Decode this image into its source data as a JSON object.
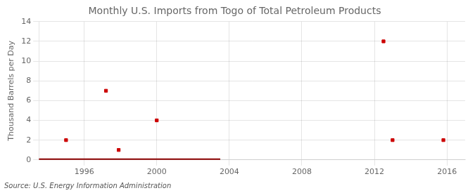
{
  "chart_data": {
    "type": "scatter",
    "title": "Monthly U.S. Imports from Togo of Total Petroleum Products",
    "ylabel": "Thousand Barrels per Day",
    "source": "Source: U.S. Energy Information Administration",
    "xlim": [
      1993.5,
      2017.0
    ],
    "ylim": [
      0,
      14
    ],
    "xticks": [
      1996,
      2000,
      2004,
      2008,
      2012,
      2016
    ],
    "yticks": [
      0,
      2,
      4,
      6,
      8,
      10,
      12,
      14
    ],
    "grid": true,
    "series": [
      {
        "type": "line",
        "color": "#8b0000",
        "line_style": "solid",
        "x": [
          1993.5,
          2003.5
        ],
        "values": [
          0,
          0
        ]
      },
      {
        "type": "scatter",
        "color": "#cc0000",
        "marker": "square",
        "x": [
          1995.0,
          1997.2,
          1997.9,
          2000.0,
          2012.5,
          2013.0,
          2015.8
        ],
        "values": [
          2,
          7,
          1,
          4,
          12,
          2,
          2
        ]
      }
    ]
  }
}
